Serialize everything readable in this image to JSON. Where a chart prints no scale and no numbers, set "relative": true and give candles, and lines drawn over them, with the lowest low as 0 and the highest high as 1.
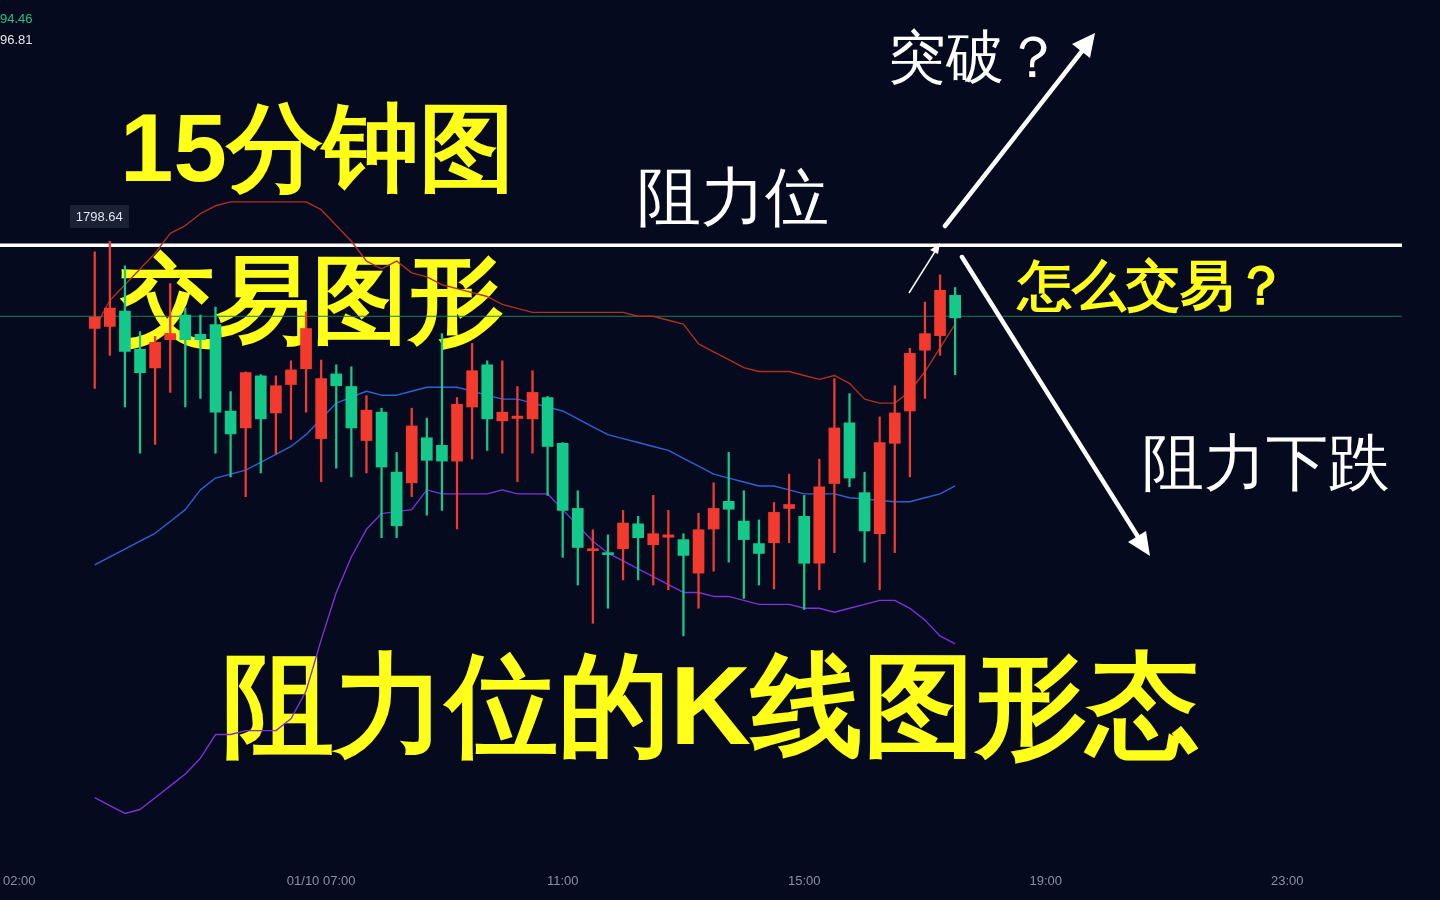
{
  "chart_data": {
    "type": "candlestick",
    "relative": true,
    "title": "15分钟图",
    "subtitle": "交易图形",
    "x": [
      3.25,
      3.5,
      3.75,
      4,
      4.25,
      4.5,
      4.75,
      5,
      5.25,
      5.5,
      5.75,
      6,
      6.25,
      6.5,
      6.75,
      7,
      7.25,
      7.5,
      7.75,
      8,
      8.25,
      8.5,
      8.75,
      9,
      9.25,
      9.5,
      9.75,
      10,
      10.25,
      10.5,
      10.75,
      11,
      11.25,
      11.5,
      11.75,
      12,
      12.25,
      12.5,
      12.75,
      13,
      13.25,
      13.5,
      13.75,
      14,
      14.25,
      14.5,
      14.75,
      15,
      15.25,
      15.5,
      15.75,
      16,
      16.25,
      16.5,
      16.75,
      17,
      17.25,
      17.5
    ],
    "xlim": [
      2,
      25
    ],
    "xticks": [
      {
        "value": 2,
        "label": "02:00"
      },
      {
        "value": 7,
        "label": "01/10 07:00"
      },
      {
        "value": 11,
        "label": "11:00"
      },
      {
        "value": 15,
        "label": "15:00"
      },
      {
        "value": 19,
        "label": "19:00"
      },
      {
        "value": 23,
        "label": "23:00"
      }
    ],
    "ohlc": [
      [
        0.779,
        0.973,
        0.627,
        0.808
      ],
      [
        0.784,
        1,
        0.711,
        0.831
      ],
      [
        0.823,
        0.938,
        0.58,
        0.721
      ],
      [
        0.726,
        0.771,
        0.463,
        0.667
      ],
      [
        0.679,
        0.759,
        0.485,
        0.744
      ],
      [
        0.751,
        0.893,
        0.617,
        0.766
      ],
      [
        0.813,
        0.831,
        0.58,
        0.751
      ],
      [
        0.764,
        0.813,
        0.602,
        0.751
      ],
      [
        0.789,
        0.833,
        0.463,
        0.567
      ],
      [
        0.57,
        0.619,
        0.403,
        0.512
      ],
      [
        0.527,
        0.669,
        0.353,
        0.667
      ],
      [
        0.659,
        0.662,
        0.413,
        0.55
      ],
      [
        0.565,
        0.659,
        0.46,
        0.634
      ],
      [
        0.637,
        0.697,
        0.498,
        0.674
      ],
      [
        0.677,
        0.821,
        0.567,
        0.779
      ],
      [
        0.5,
        0.699,
        0.391,
        0.652
      ],
      [
        0.664,
        0.687,
        0.425,
        0.634
      ],
      [
        0.632,
        0.682,
        0.403,
        0.527
      ],
      [
        0.495,
        0.609,
        0.413,
        0.572
      ],
      [
        0.567,
        0.577,
        0.249,
        0.428
      ],
      [
        0.415,
        0.465,
        0.249,
        0.279
      ],
      [
        0.388,
        0.577,
        0.353,
        0.532
      ],
      [
        0.502,
        0.552,
        0.306,
        0.445
      ],
      [
        0.483,
        0.766,
        0.318,
        0.443
      ],
      [
        0.443,
        0.604,
        0.271,
        0.587
      ],
      [
        0.58,
        0.741,
        0.448,
        0.672
      ],
      [
        0.687,
        0.697,
        0.47,
        0.55
      ],
      [
        0.545,
        0.697,
        0.463,
        0.567
      ],
      [
        0.551,
        0.632,
        0.391,
        0.557
      ],
      [
        0.55,
        0.672,
        0.463,
        0.617
      ],
      [
        0.604,
        0.607,
        0.356,
        0.48
      ],
      [
        0.488,
        0.49,
        0.199,
        0.318
      ],
      [
        0.323,
        0.368,
        0.129,
        0.224
      ],
      [
        0.216,
        0.269,
        0.032,
        0.221
      ],
      [
        0.211,
        0.256,
        0.07,
        0.206
      ],
      [
        0.221,
        0.318,
        0.142,
        0.286
      ],
      [
        0.284,
        0.303,
        0.142,
        0.249
      ],
      [
        0.231,
        0.356,
        0.129,
        0.259
      ],
      [
        0.25,
        0.318,
        0.117,
        0.256
      ],
      [
        0.244,
        0.259,
        0,
        0.204
      ],
      [
        0.159,
        0.311,
        0.07,
        0.269
      ],
      [
        0.271,
        0.388,
        0.164,
        0.323
      ],
      [
        0.341,
        0.465,
        0.187,
        0.321
      ],
      [
        0.291,
        0.368,
        0.095,
        0.244
      ],
      [
        0.234,
        0.294,
        0.129,
        0.209
      ],
      [
        0.236,
        0.338,
        0.119,
        0.313
      ],
      [
        0.323,
        0.41,
        0.236,
        0.333
      ],
      [
        0.303,
        0.356,
        0.067,
        0.184
      ],
      [
        0.184,
        0.448,
        0.117,
        0.378
      ],
      [
        0.386,
        0.652,
        0.211,
        0.527
      ],
      [
        0.54,
        0.614,
        0.378,
        0.4
      ],
      [
        0.363,
        0.415,
        0.187,
        0.266
      ],
      [
        0.259,
        0.555,
        0.117,
        0.49
      ],
      [
        0.488,
        0.634,
        0.211,
        0.565
      ],
      [
        0.57,
        0.729,
        0.403,
        0.716
      ],
      [
        0.724,
        0.846,
        0.602,
        0.766
      ],
      [
        0.761,
        0.915,
        0.711,
        0.876
      ],
      [
        0.863,
        0.883,
        0.662,
        0.806
      ]
    ],
    "colors": [
      "#f23b2e",
      "#f23b2e",
      "#14c98a",
      "#14c98a",
      "#f23b2e",
      "#f23b2e",
      "#14c98a",
      "#14c98a",
      "#14c98a",
      "#14c98a",
      "#f23b2e",
      "#14c98a",
      "#f23b2e",
      "#f23b2e",
      "#f23b2e",
      "#f23b2e",
      "#14c98a",
      "#14c98a",
      "#f23b2e",
      "#14c98a",
      "#14c98a",
      "#f23b2e",
      "#14c98a",
      "#14c98a",
      "#f23b2e",
      "#f23b2e",
      "#14c98a",
      "#f23b2e",
      "#f23b2e",
      "#f23b2e",
      "#14c98a",
      "#14c98a",
      "#14c98a",
      "#f23b2e",
      "#14c98a",
      "#f23b2e",
      "#14c98a",
      "#f23b2e",
      "#f23b2e",
      "#14c98a",
      "#f23b2e",
      "#f23b2e",
      "#14c98a",
      "#14c98a",
      "#14c98a",
      "#f23b2e",
      "#f23b2e",
      "#14c98a",
      "#f23b2e",
      "#f23b2e",
      "#14c98a",
      "#14c98a",
      "#f23b2e",
      "#f23b2e",
      "#f23b2e",
      "#f23b2e",
      "#f23b2e",
      "#14c98a"
    ],
    "series": [
      {
        "type": "line",
        "color": "#b0301f",
        "values": [
          0.78,
          0.85,
          0.89,
          0.93,
          0.97,
          1.02,
          1.04,
          1.07,
          1.09,
          1.1,
          1.1,
          1.1,
          1.1,
          1.1,
          1.1,
          1.08,
          1.04,
          1,
          0.95,
          0.93,
          0.95,
          0.92,
          0.91,
          0.89,
          0.88,
          0.87,
          0.86,
          0.84,
          0.83,
          0.82,
          0.82,
          0.82,
          0.82,
          0.82,
          0.82,
          0.82,
          0.81,
          0.81,
          0.8,
          0.79,
          0.74,
          0.72,
          0.7,
          0.68,
          0.67,
          0.67,
          0.67,
          0.66,
          0.65,
          0.66,
          0.64,
          0.6,
          0.59,
          0.59,
          0.62,
          0.67,
          0.73,
          0.79
        ]
      },
      {
        "type": "line",
        "color": "#2f62d6",
        "values": [
          0.18,
          0.2,
          0.22,
          0.24,
          0.26,
          0.29,
          0.32,
          0.37,
          0.4,
          0.41,
          0.42,
          0.44,
          0.46,
          0.48,
          0.51,
          null,
          0.59,
          null,
          0.62,
          0.61,
          0.61,
          0.62,
          0.63,
          0.63,
          0.63,
          null,
          null,
          0.6,
          0.6,
          null,
          null,
          0.57,
          0.55,
          0.53,
          0.51,
          0.5,
          0.49,
          0.48,
          0.47,
          0.45,
          0.43,
          0.41,
          0.4,
          0.39,
          0.38,
          0.38,
          0.37,
          0.36,
          null,
          0.36,
          0.35,
          null,
          null,
          0.34,
          0.34,
          0.35,
          0.36,
          0.38
        ]
      },
      {
        "type": "line",
        "color": "#7d32d8",
        "values": [
          -0.41,
          -0.43,
          -0.45,
          -0.44,
          -0.41,
          -0.38,
          -0.35,
          -0.31,
          -0.25,
          -0.25,
          -0.24,
          -0.24,
          -0.24,
          -0.21,
          -0.14,
          -0.01,
          0.11,
          0.2,
          0.27,
          0.31,
          null,
          0.32,
          0.37,
          0.36,
          0.36,
          0.36,
          0.36,
          0.37,
          0.36,
          0.36,
          0.36,
          0.32,
          null,
          0.24,
          0.21,
          0.19,
          0.17,
          0.15,
          0.13,
          0.11,
          0.11,
          0.1,
          0.1,
          0.09,
          0.08,
          0.08,
          0.08,
          0.07,
          0.07,
          0.06,
          0.07,
          0.08,
          0.09,
          0.09,
          0.07,
          0.04,
          0,
          -0.02
        ]
      }
    ],
    "ref_lines": [
      {
        "axis": "y",
        "value": 0.99,
        "label": "阻力位",
        "color": "#ffffff"
      },
      {
        "axis": "y",
        "value": 0.81,
        "color": "#1c7a57"
      }
    ],
    "annotations": [
      "94.46",
      "96.81",
      {
        "text": "1798.64",
        "x": 3.5,
        "y": 1
      },
      "突破？",
      "怎么交易？",
      "阻力下跌",
      "阻力位的K线图形态"
    ],
    "legend": false
  }
}
